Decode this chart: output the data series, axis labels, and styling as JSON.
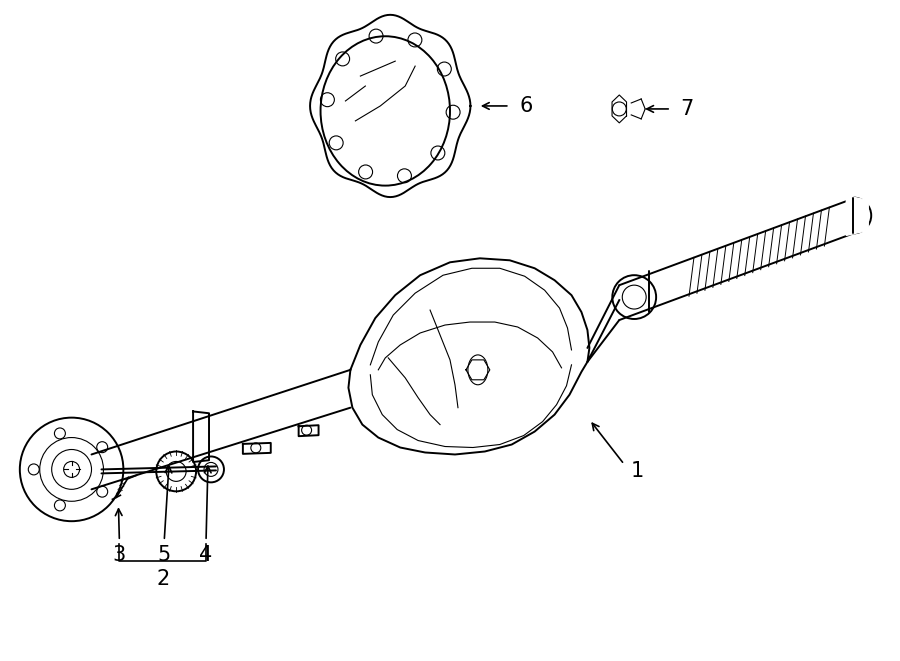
{
  "bg_color": "#ffffff",
  "line_color": "#000000",
  "lw": 1.4,
  "tlw": 0.8,
  "fig_width": 9.0,
  "fig_height": 6.61
}
